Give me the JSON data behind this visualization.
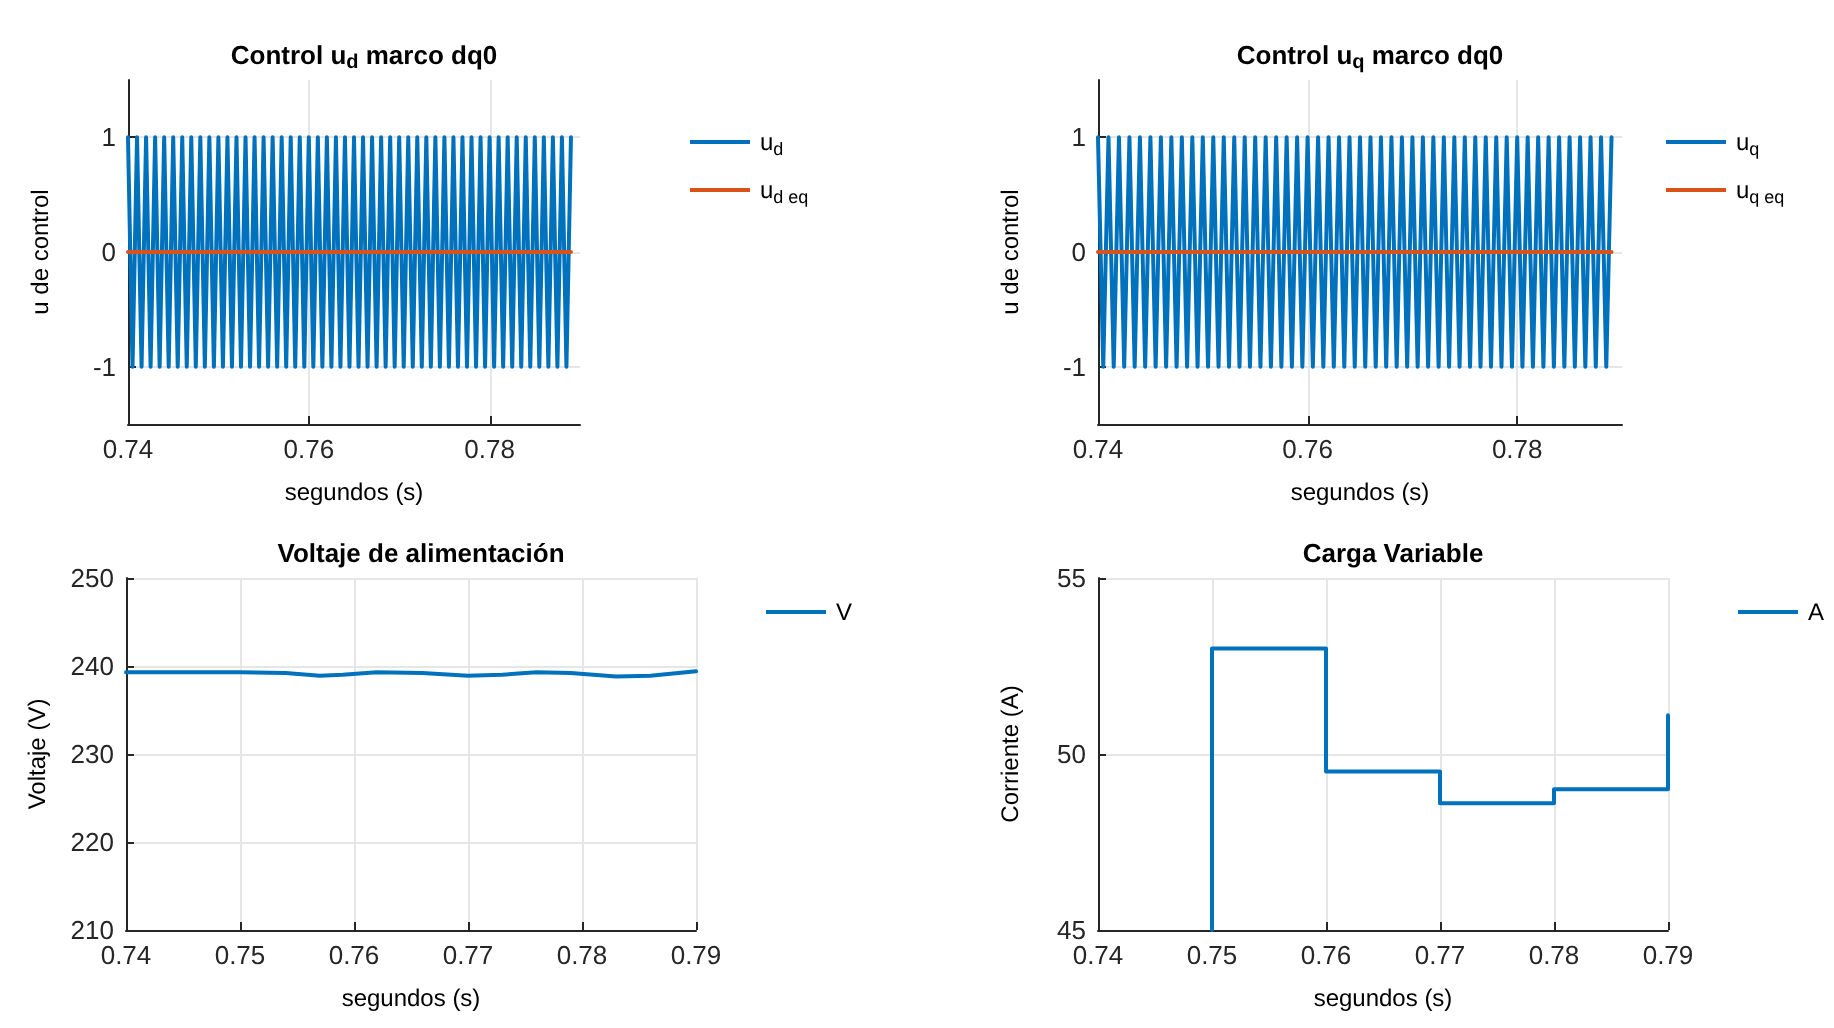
{
  "chart_data": [
    {
      "type": "line",
      "title": "Control u$_{d}$ marco dq0",
      "xlabel": "segundos (s)",
      "ylabel": "u de control",
      "xlim": [
        0.74,
        0.79
      ],
      "xticks": [
        0.74,
        0.76,
        0.78
      ],
      "ylim": [
        -1.5,
        1.5
      ],
      "yticks": [
        -1,
        0,
        1
      ],
      "grid": true,
      "legend": "right",
      "marker": "none",
      "line_style": "solid",
      "series": [
        {
          "name": "u$_{d}$",
          "color": "#0072bd",
          "x": [
            0.74,
            0.7405,
            0.741,
            0.7415,
            0.742,
            0.7425,
            0.743,
            0.7435,
            0.744,
            0.7445,
            0.745,
            0.7455,
            0.746,
            0.7465,
            0.747,
            0.7475,
            0.748,
            0.7485,
            0.749,
            0.7495,
            0.75,
            0.7505,
            0.751,
            0.7515,
            0.752,
            0.7525,
            0.753,
            0.7535,
            0.754,
            0.7545,
            0.755,
            0.7555,
            0.756,
            0.7565,
            0.757,
            0.7575,
            0.758,
            0.7585,
            0.759,
            0.7595,
            0.76,
            0.7605,
            0.761,
            0.7615,
            0.762,
            0.7625,
            0.763,
            0.7635,
            0.764,
            0.7645,
            0.765,
            0.7655,
            0.766,
            0.7665,
            0.767,
            0.7675,
            0.768,
            0.7685,
            0.769,
            0.7695,
            0.77,
            0.7705,
            0.771,
            0.7715,
            0.772,
            0.7725,
            0.773,
            0.7735,
            0.774,
            0.7745,
            0.775,
            0.7755,
            0.776,
            0.7765,
            0.777,
            0.7775,
            0.778,
            0.7785,
            0.779,
            0.7795,
            0.78,
            0.7805,
            0.781,
            0.7815,
            0.782,
            0.7825,
            0.783,
            0.7835,
            0.784,
            0.7845,
            0.785,
            0.7855,
            0.786,
            0.7865,
            0.787,
            0.7875,
            0.788,
            0.7885,
            0.789
          ],
          "values": [
            1,
            -1,
            1,
            -1,
            1,
            -1,
            1,
            -1,
            1,
            -1,
            1,
            -1,
            1,
            -1,
            1,
            -1,
            1,
            -1,
            1,
            -1,
            1,
            -1,
            1,
            -1,
            1,
            -1,
            1,
            -1,
            1,
            -1,
            1,
            -1,
            1,
            -1,
            1,
            -1,
            1,
            -1,
            1,
            -1,
            1,
            -1,
            1,
            -1,
            1,
            -1,
            1,
            -1,
            1,
            -1,
            1,
            -1,
            1,
            -1,
            1,
            -1,
            1,
            -1,
            1,
            -1,
            1,
            -1,
            1,
            -1,
            1,
            -1,
            1,
            -1,
            1,
            -1,
            1,
            -1,
            1,
            -1,
            1,
            -1,
            1,
            -1,
            1,
            -1,
            1,
            -1,
            1,
            -1,
            1,
            -1,
            1,
            -1,
            1,
            -1,
            1,
            -1,
            1,
            -1,
            1,
            -1,
            1,
            -1,
            1
          ]
        },
        {
          "name": "u$_{d eq}$",
          "color": "#d95319",
          "x": [
            0.74,
            0.789
          ],
          "values": [
            0,
            0
          ]
        }
      ]
    },
    {
      "type": "line",
      "title": "Control u$_{q}$ marco dq0",
      "xlabel": "segundos (s)",
      "ylabel": "u de control",
      "xlim": [
        0.74,
        0.79
      ],
      "xticks": [
        0.74,
        0.76,
        0.78
      ],
      "ylim": [
        -1.5,
        1.5
      ],
      "yticks": [
        -1,
        0,
        1
      ],
      "grid": true,
      "legend": "right",
      "marker": "none",
      "line_style": "solid",
      "series": [
        {
          "name": "u$_{q}$",
          "color": "#0072bd",
          "x": [
            0.74,
            0.7405,
            0.741,
            0.7415,
            0.742,
            0.7425,
            0.743,
            0.7435,
            0.744,
            0.7445,
            0.745,
            0.7455,
            0.746,
            0.7465,
            0.747,
            0.7475,
            0.748,
            0.7485,
            0.749,
            0.7495,
            0.75,
            0.7505,
            0.751,
            0.7515,
            0.752,
            0.7525,
            0.753,
            0.7535,
            0.754,
            0.7545,
            0.755,
            0.7555,
            0.756,
            0.7565,
            0.757,
            0.7575,
            0.758,
            0.7585,
            0.759,
            0.7595,
            0.76,
            0.7605,
            0.761,
            0.7615,
            0.762,
            0.7625,
            0.763,
            0.7635,
            0.764,
            0.7645,
            0.765,
            0.7655,
            0.766,
            0.7665,
            0.767,
            0.7675,
            0.768,
            0.7685,
            0.769,
            0.7695,
            0.77,
            0.7705,
            0.771,
            0.7715,
            0.772,
            0.7725,
            0.773,
            0.7735,
            0.774,
            0.7745,
            0.775,
            0.7755,
            0.776,
            0.7765,
            0.777,
            0.7775,
            0.778,
            0.7785,
            0.779,
            0.7795,
            0.78,
            0.7805,
            0.781,
            0.7815,
            0.782,
            0.7825,
            0.783,
            0.7835,
            0.784,
            0.7845,
            0.785,
            0.7855,
            0.786,
            0.7865,
            0.787,
            0.7875,
            0.788,
            0.7885,
            0.789
          ],
          "values": [
            1,
            -1,
            1,
            -1,
            1,
            -1,
            1,
            -1,
            1,
            -1,
            1,
            -1,
            1,
            -1,
            1,
            -1,
            1,
            -1,
            1,
            -1,
            1,
            -1,
            1,
            -1,
            1,
            -1,
            1,
            -1,
            1,
            -1,
            1,
            -1,
            1,
            -1,
            1,
            -1,
            1,
            -1,
            1,
            -1,
            1,
            -1,
            1,
            -1,
            1,
            -1,
            1,
            -1,
            1,
            -1,
            1,
            -1,
            1,
            -1,
            1,
            -1,
            1,
            -1,
            1,
            -1,
            1,
            -1,
            1,
            -1,
            1,
            -1,
            1,
            -1,
            1,
            -1,
            1,
            -1,
            1,
            -1,
            1,
            -1,
            1,
            -1,
            1,
            -1,
            1,
            -1,
            1,
            -1,
            1,
            -1,
            1,
            -1,
            1,
            -1,
            1,
            -1,
            1,
            -1,
            1,
            -1,
            1,
            -1,
            1
          ]
        },
        {
          "name": "u$_{q eq}$",
          "color": "#d95319",
          "x": [
            0.74,
            0.789
          ],
          "values": [
            0,
            0
          ]
        }
      ]
    },
    {
      "type": "line",
      "title": "Voltaje de alimentación",
      "xlabel": "segundos (s)",
      "ylabel": "Voltaje (V)",
      "xlim": [
        0.74,
        0.79
      ],
      "xticks": [
        0.74,
        0.75,
        0.76,
        0.77,
        0.78,
        0.79
      ],
      "ylim": [
        210,
        250
      ],
      "yticks": [
        210,
        220,
        230,
        240,
        250
      ],
      "grid": true,
      "legend": "right",
      "marker": "none",
      "line_style": "solid",
      "series": [
        {
          "name": "V",
          "color": "#0072bd",
          "x": [
            0.74,
            0.745,
            0.75,
            0.754,
            0.757,
            0.759,
            0.762,
            0.766,
            0.77,
            0.773,
            0.776,
            0.779,
            0.783,
            0.786,
            0.79
          ],
          "values": [
            239.3,
            239.3,
            239.3,
            239.2,
            238.9,
            239.0,
            239.3,
            239.2,
            238.9,
            239.0,
            239.3,
            239.2,
            238.8,
            238.9,
            239.4
          ]
        }
      ]
    },
    {
      "type": "line",
      "title": "Carga Variable",
      "xlabel": "segundos (s)",
      "ylabel": "Corriente (A)",
      "xlim": [
        0.74,
        0.79
      ],
      "xticks": [
        0.74,
        0.75,
        0.76,
        0.77,
        0.78,
        0.79
      ],
      "ylim": [
        45,
        55
      ],
      "yticks": [
        45,
        50,
        55
      ],
      "grid": true,
      "legend": "right",
      "marker": "none",
      "line_style": "solid",
      "series": [
        {
          "name": "A",
          "color": "#0072bd",
          "x": [
            0.75,
            0.75,
            0.76,
            0.76,
            0.77,
            0.77,
            0.78,
            0.78,
            0.79,
            0.79
          ],
          "values": [
            45,
            53,
            53,
            49.5,
            49.5,
            48.6,
            48.6,
            49,
            49,
            51.1
          ]
        }
      ]
    }
  ]
}
